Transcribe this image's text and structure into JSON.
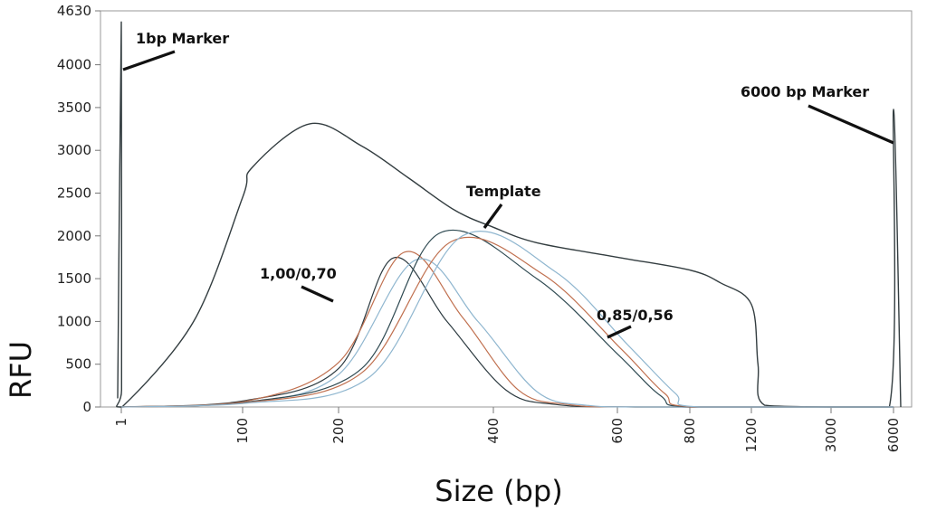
{
  "chart_data": {
    "type": "line",
    "title": "",
    "xlabel": "Size (bp)",
    "ylabel": "RFU",
    "ylim": [
      0,
      4630
    ],
    "yticks": [
      0,
      500,
      1000,
      1500,
      2000,
      2500,
      3000,
      3500,
      4000,
      4630
    ],
    "xticks": [
      "1",
      "100",
      "200",
      "400",
      "600",
      "800",
      "1200",
      "3000",
      "6000"
    ],
    "x_scale": "nonlinear (sizing ladder)",
    "grid": false,
    "annotations": [
      {
        "text": "1bp Marker",
        "points_to_x": "1",
        "points_to_y": 3950
      },
      {
        "text": "6000 bp Marker",
        "points_to_x": "6000",
        "points_to_y": 3050
      },
      {
        "text": "Template",
        "points_to_x": "400",
        "points_to_y": 2100
      },
      {
        "text": "1,00/0,70",
        "points_to_x": "200",
        "points_to_y": 1250
      },
      {
        "text": "0,85/0,56",
        "points_to_x": "600",
        "points_to_y": 820
      }
    ],
    "series": [
      {
        "color": "#333d40",
        "points": [
          [
            0.8,
            100
          ],
          [
            1,
            4500
          ],
          [
            1.2,
            200
          ],
          [
            1.6,
            0
          ],
          [
            60,
            1000
          ],
          [
            100,
            2450
          ],
          [
            110,
            2800
          ],
          [
            170,
            3310
          ],
          [
            230,
            3050
          ],
          [
            290,
            2680
          ],
          [
            350,
            2300
          ],
          [
            400,
            2100
          ],
          [
            470,
            1920
          ],
          [
            600,
            1750
          ],
          [
            800,
            1600
          ],
          [
            1000,
            1450
          ],
          [
            1200,
            1200
          ],
          [
            1350,
            500
          ],
          [
            1500,
            20
          ],
          [
            3000,
            0
          ],
          [
            5800,
            0
          ],
          [
            6000,
            3480
          ],
          [
            6150,
            0
          ]
        ]
      },
      {
        "color": "#2c3a40",
        "points": [
          [
            1,
            0
          ],
          [
            100,
            70
          ],
          [
            200,
            450
          ],
          [
            270,
            1740
          ],
          [
            340,
            1000
          ],
          [
            420,
            200
          ],
          [
            500,
            30
          ],
          [
            650,
            0
          ],
          [
            6000,
            0
          ]
        ]
      },
      {
        "color": "#c0704f",
        "points": [
          [
            1,
            0
          ],
          [
            100,
            60
          ],
          [
            200,
            520
          ],
          [
            285,
            1810
          ],
          [
            360,
            1050
          ],
          [
            440,
            200
          ],
          [
            520,
            30
          ],
          [
            650,
            0
          ],
          [
            6000,
            0
          ]
        ]
      },
      {
        "color": "#8fb6cf",
        "points": [
          [
            1,
            0
          ],
          [
            100,
            50
          ],
          [
            200,
            380
          ],
          [
            300,
            1720
          ],
          [
            380,
            1000
          ],
          [
            470,
            180
          ],
          [
            550,
            20
          ],
          [
            680,
            0
          ],
          [
            6000,
            0
          ]
        ]
      },
      {
        "color": "#2f4a52",
        "points": [
          [
            1,
            0
          ],
          [
            100,
            50
          ],
          [
            230,
            450
          ],
          [
            330,
            2030
          ],
          [
            470,
            1500
          ],
          [
            600,
            620
          ],
          [
            720,
            130
          ],
          [
            820,
            0
          ],
          [
            6000,
            0
          ]
        ]
      },
      {
        "color": "#c0704f",
        "points": [
          [
            1,
            0
          ],
          [
            100,
            45
          ],
          [
            230,
            400
          ],
          [
            345,
            1930
          ],
          [
            480,
            1550
          ],
          [
            610,
            680
          ],
          [
            730,
            160
          ],
          [
            830,
            0
          ],
          [
            6000,
            0
          ]
        ]
      },
      {
        "color": "#8fb6cf",
        "points": [
          [
            1,
            0
          ],
          [
            100,
            40
          ],
          [
            240,
            350
          ],
          [
            360,
            2000
          ],
          [
            500,
            1580
          ],
          [
            630,
            720
          ],
          [
            760,
            160
          ],
          [
            860,
            0
          ],
          [
            6000,
            0
          ]
        ]
      }
    ]
  }
}
